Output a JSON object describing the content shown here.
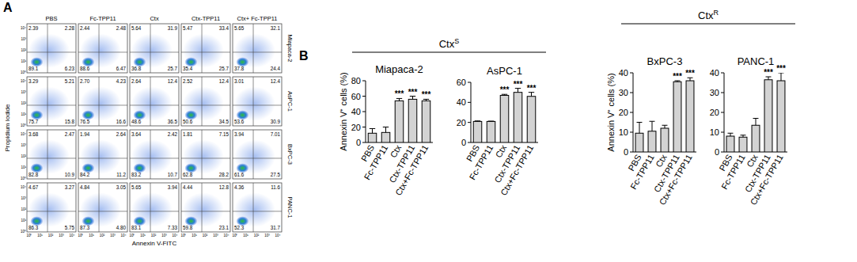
{
  "panel_a": {
    "label": "A",
    "columns": [
      "PBS",
      "Fc-TPP11",
      "Ctx",
      "Ctx-TPP11",
      "Ctx+ Fc-TPP11"
    ],
    "rows": [
      "Miapaca-2",
      "AsPC-1",
      "BxPC-3",
      "PANC-1"
    ],
    "y_label": "Propidium Iodide",
    "x_label": "Annexin V-FITC",
    "ticks": [
      "10⁰",
      "10¹",
      "10²",
      "10³",
      "10⁴"
    ],
    "quadrants": [
      [
        {
          "ul": "2.39",
          "ur": "2.28",
          "ll": "89.1",
          "lr": "6.23"
        },
        {
          "ul": "2.44",
          "ur": "2.48",
          "ll": "88.6",
          "lr": "6.47"
        },
        {
          "ul": "5.64",
          "ur": "31.9",
          "ll": "36.8",
          "lr": "25.7"
        },
        {
          "ul": "5.47",
          "ur": "33.4",
          "ll": "35.4",
          "lr": "25.7"
        },
        {
          "ul": "5.65",
          "ur": "32.1",
          "ll": "37.8",
          "lr": "24.4"
        }
      ],
      [
        {
          "ul": "3.29",
          "ur": "5.21",
          "ll": "75.7",
          "lr": "15.8"
        },
        {
          "ul": "2.70",
          "ur": "4.23",
          "ll": "76.5",
          "lr": "16.6"
        },
        {
          "ul": "2.64",
          "ur": "12.4",
          "ll": "48.6",
          "lr": "36.5"
        },
        {
          "ul": "2.52",
          "ur": "12.4",
          "ll": "50.6",
          "lr": "34.5"
        },
        {
          "ul": "3.01",
          "ur": "12.4",
          "ll": "53.6",
          "lr": "30.9"
        }
      ],
      [
        {
          "ul": "3.68",
          "ur": "2.47",
          "ll": "82.8",
          "lr": "10.9"
        },
        {
          "ul": "1.94",
          "ur": "2.64",
          "ll": "84.2",
          "lr": "11.2"
        },
        {
          "ul": "3.64",
          "ur": "2.42",
          "ll": "83.2",
          "lr": "10.7"
        },
        {
          "ul": "1.81",
          "ur": "7.15",
          "ll": "62.8",
          "lr": "28.2"
        },
        {
          "ul": "3.94",
          "ur": "7.01",
          "ll": "61.6",
          "lr": "27.5"
        }
      ],
      [
        {
          "ul": "4.67",
          "ur": "3.27",
          "ll": "86.3",
          "lr": "5.75"
        },
        {
          "ul": "4.84",
          "ur": "3.05",
          "ll": "87.3",
          "lr": "4.80"
        },
        {
          "ul": "5.65",
          "ur": "3.94",
          "ll": "83.1",
          "lr": "7.33"
        },
        {
          "ul": "4.44",
          "ur": "12.8",
          "ll": "59.8",
          "lr": "23.1"
        },
        {
          "ul": "4.36",
          "ur": "11.6",
          "ll": "52.3",
          "lr": "31.7"
        }
      ]
    ]
  },
  "panel_b": {
    "label": "B",
    "groups": [
      {
        "label": "Ctx",
        "superscript": "S"
      },
      {
        "label": "Ctx",
        "superscript": "R"
      }
    ]
  },
  "chart_data": [
    {
      "type": "bar",
      "title": "Miapaca-2",
      "ylabel": "Annexin V⁺ cells (%)",
      "categories": [
        "PBS",
        "Fc-TPP11",
        "Ctx",
        "Ctx-TPP11",
        "Ctx+Fc-TPP11"
      ],
      "values": [
        12,
        13,
        54,
        56,
        54
      ],
      "errors": [
        6,
        7,
        3,
        4,
        2
      ],
      "significance": [
        null,
        null,
        "***",
        "***",
        "***"
      ],
      "color": "#d3d3d3",
      "ylim": [
        0,
        80
      ],
      "yticks": [
        0,
        20,
        40,
        60,
        80
      ]
    },
    {
      "type": "bar",
      "title": "AsPC-1",
      "categories": [
        "PBS",
        "Fc-TPP11",
        "Ctx",
        "Ctx-TPP11",
        "Ctx+Fc-TPP11"
      ],
      "values": [
        21,
        21,
        47,
        50,
        46
      ],
      "errors": [
        0.5,
        0.3,
        1,
        4,
        4
      ],
      "significance": [
        null,
        null,
        "***",
        "***",
        "***"
      ],
      "color": "#d3d3d3",
      "ylim": [
        0,
        60
      ],
      "yticks": [
        0,
        20,
        40,
        60
      ]
    },
    {
      "type": "bar",
      "title": "BxPC-3",
      "ylabel": "Annexin V⁺ cells (%)",
      "categories": [
        "PBS",
        "Fc-TPP11",
        "Ctx",
        "Ctx-TPP11",
        "Ctx+Fc-TPP11"
      ],
      "values": [
        9.5,
        10.5,
        12,
        35.5,
        36
      ],
      "errors": [
        5.5,
        5,
        1.5,
        0.5,
        1.5
      ],
      "significance": [
        null,
        null,
        null,
        "***",
        "***"
      ],
      "color": "#d3d3d3",
      "ylim": [
        0,
        40
      ],
      "yticks": [
        0,
        10,
        20,
        30,
        40
      ]
    },
    {
      "type": "bar",
      "title": "PANC-1",
      "categories": [
        "PBS",
        "Fc-TPP11",
        "Ctx",
        "Ctx-TPP11",
        "Ctx+Fc-TPP11"
      ],
      "values": [
        8,
        7.5,
        13.5,
        36.5,
        36
      ],
      "errors": [
        1.5,
        1,
        3.5,
        1.5,
        4
      ],
      "significance": [
        null,
        null,
        null,
        "***",
        "***"
      ],
      "color": "#d3d3d3",
      "ylim": [
        0,
        40
      ],
      "yticks": [
        0,
        10,
        20,
        30,
        40
      ]
    }
  ]
}
